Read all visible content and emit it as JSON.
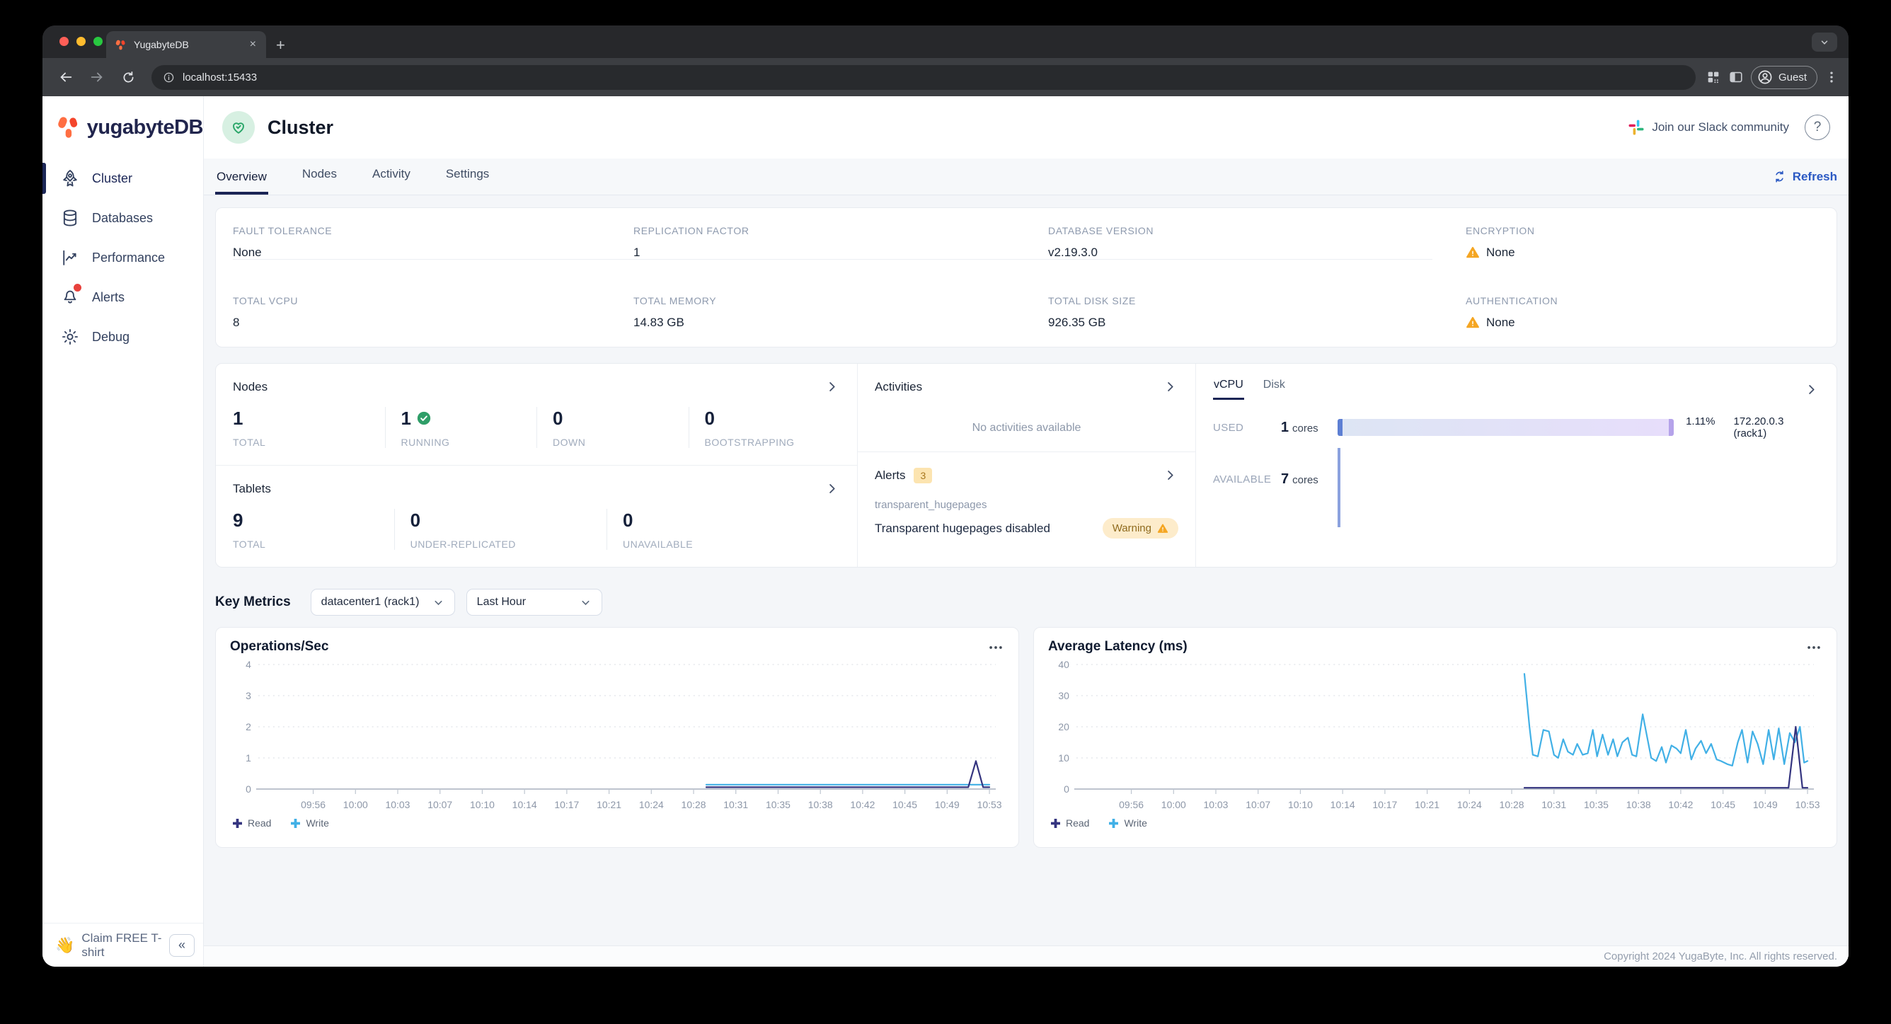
{
  "browser": {
    "tab_title": "YugabyteDB",
    "url": "localhost:15433",
    "profile_label": "Guest"
  },
  "glyphs": {
    "close": "×",
    "new_tab": "+",
    "collapse": "«",
    "help": "?",
    "wave_emoji": "👋"
  },
  "sidebar": {
    "logo_text": "yugabyteDB",
    "items": [
      {
        "label": "Cluster",
        "icon": "rocket",
        "active": true
      },
      {
        "label": "Databases",
        "icon": "database",
        "active": false
      },
      {
        "label": "Performance",
        "icon": "line-chart",
        "active": false
      },
      {
        "label": "Alerts",
        "icon": "bell-with-dot",
        "active": false
      },
      {
        "label": "Debug",
        "icon": "gear",
        "active": false
      }
    ],
    "claim_text": "Claim FREE T-shirt"
  },
  "header": {
    "title": "Cluster",
    "slack_link": "Join our Slack community"
  },
  "tabs": {
    "items": [
      "Overview",
      "Nodes",
      "Activity",
      "Settings"
    ],
    "active": "Overview",
    "refresh_label": "Refresh"
  },
  "overview_card": {
    "fields": [
      {
        "label": "FAULT TOLERANCE",
        "value": "None",
        "warning": false
      },
      {
        "label": "REPLICATION FACTOR",
        "value": "1",
        "warning": false
      },
      {
        "label": "DATABASE VERSION",
        "value": "v2.19.3.0",
        "warning": false
      },
      {
        "label": "ENCRYPTION",
        "value": "None",
        "warning": true
      },
      {
        "label": "TOTAL VCPU",
        "value": "8",
        "warning": false
      },
      {
        "label": "TOTAL MEMORY",
        "value": "14.83 GB",
        "warning": false
      },
      {
        "label": "TOTAL DISK SIZE",
        "value": "926.35 GB",
        "warning": false
      },
      {
        "label": "AUTHENTICATION",
        "value": "None",
        "warning": true
      }
    ]
  },
  "nodes_panel": {
    "title": "Nodes",
    "stats": [
      {
        "value": "1",
        "label": "TOTAL",
        "check": false
      },
      {
        "value": "1",
        "label": "RUNNING",
        "check": true
      },
      {
        "value": "0",
        "label": "DOWN",
        "check": false
      },
      {
        "value": "0",
        "label": "BOOTSTRAPPING",
        "check": false
      }
    ]
  },
  "tablets_panel": {
    "title": "Tablets",
    "stats": [
      {
        "value": "9",
        "label": "TOTAL"
      },
      {
        "value": "0",
        "label": "UNDER-REPLICATED"
      },
      {
        "value": "0",
        "label": "UNAVAILABLE"
      }
    ]
  },
  "activities_panel": {
    "title": "Activities",
    "empty_text": "No activities available"
  },
  "alerts_panel": {
    "title": "Alerts",
    "count": "3",
    "alert_name": "transparent_hugepages",
    "alert_text": "Transparent hugepages disabled",
    "badge_label": "Warning"
  },
  "usage_panel": {
    "tabs": [
      "vCPU",
      "Disk"
    ],
    "active_tab": "vCPU",
    "used_label": "USED",
    "used_value": "1",
    "used_unit": "cores",
    "used_percent": "1.11%",
    "used_node": "172.20.0.3 (rack1)",
    "available_label": "AVAILABLE",
    "available_value": "7",
    "available_unit": "cores"
  },
  "key_metrics": {
    "title": "Key Metrics",
    "region_select": "datacenter1 (rack1)",
    "time_select": "Last Hour"
  },
  "chart_data": [
    {
      "type": "line",
      "title": "Operations/Sec",
      "ylim": [
        0,
        4
      ],
      "yticks": [
        0,
        1,
        2,
        3,
        4
      ],
      "xticks": [
        "09:56",
        "10:00",
        "10:03",
        "10:07",
        "10:10",
        "10:14",
        "10:17",
        "10:21",
        "10:24",
        "10:28",
        "10:31",
        "10:35",
        "10:38",
        "10:42",
        "10:45",
        "10:49",
        "10:53"
      ],
      "x_unit": "tick-index",
      "legend_position": "bottom-left",
      "grid": "dotted-horizontal",
      "series": [
        {
          "name": "Read",
          "color": "#34347f",
          "z": 2,
          "points": [
            [
              9.3,
              0.06
            ],
            [
              12,
              0.06
            ],
            [
              14,
              0.06
            ],
            [
              15.5,
              0.06
            ],
            [
              15.68,
              0.9
            ],
            [
              15.85,
              0.06
            ],
            [
              16,
              0.06
            ]
          ]
        },
        {
          "name": "Write",
          "color": "#41b0e6",
          "z": 1,
          "points": [
            [
              9.3,
              0.14
            ],
            [
              12,
              0.14
            ],
            [
              14,
              0.14
            ],
            [
              16,
              0.14
            ]
          ]
        }
      ]
    },
    {
      "type": "line",
      "title": "Average Latency (ms)",
      "ylim": [
        0,
        40
      ],
      "yticks": [
        0,
        10,
        20,
        30,
        40
      ],
      "xticks": [
        "09:56",
        "10:00",
        "10:03",
        "10:07",
        "10:10",
        "10:14",
        "10:17",
        "10:21",
        "10:24",
        "10:28",
        "10:31",
        "10:35",
        "10:38",
        "10:42",
        "10:45",
        "10:49",
        "10:53"
      ],
      "x_unit": "tick-index",
      "legend_position": "bottom-left",
      "grid": "dotted-horizontal",
      "series": [
        {
          "name": "Read",
          "color": "#34347f",
          "z": 2,
          "points": [
            [
              9.3,
              0.4
            ],
            [
              12,
              0.4
            ],
            [
              14,
              0.4
            ],
            [
              15.4,
              0.4
            ],
            [
              15.55,
              0.4
            ],
            [
              15.72,
              20
            ],
            [
              15.88,
              0.4
            ],
            [
              16,
              0.4
            ]
          ]
        },
        {
          "name": "Write",
          "color": "#41b0e6",
          "z": 1,
          "points": [
            [
              9.3,
              37
            ],
            [
              9.42,
              20
            ],
            [
              9.5,
              11
            ],
            [
              9.62,
              10.5
            ],
            [
              9.75,
              19
            ],
            [
              9.88,
              18.5
            ],
            [
              10.0,
              11
            ],
            [
              10.1,
              10
            ],
            [
              10.22,
              16
            ],
            [
              10.33,
              12
            ],
            [
              10.45,
              11
            ],
            [
              10.55,
              14.5
            ],
            [
              10.68,
              11
            ],
            [
              10.8,
              11.5
            ],
            [
              10.92,
              19
            ],
            [
              11.02,
              10.5
            ],
            [
              11.15,
              17.5
            ],
            [
              11.28,
              11
            ],
            [
              11.4,
              16
            ],
            [
              11.5,
              10.5
            ],
            [
              11.62,
              15
            ],
            [
              11.75,
              16.5
            ],
            [
              11.85,
              11
            ],
            [
              11.95,
              10.5
            ],
            [
              12.1,
              24
            ],
            [
              12.2,
              17
            ],
            [
              12.3,
              10
            ],
            [
              12.42,
              9
            ],
            [
              12.55,
              13.5
            ],
            [
              12.65,
              8.5
            ],
            [
              12.78,
              14
            ],
            [
              12.9,
              13
            ],
            [
              13.0,
              11.5
            ],
            [
              13.12,
              19
            ],
            [
              13.25,
              9.5
            ],
            [
              13.35,
              13
            ],
            [
              13.48,
              15.5
            ],
            [
              13.6,
              11.5
            ],
            [
              13.72,
              14.5
            ],
            [
              13.85,
              9.5
            ],
            [
              13.95,
              9
            ],
            [
              14.1,
              8
            ],
            [
              14.22,
              7.5
            ],
            [
              14.35,
              15
            ],
            [
              14.45,
              19
            ],
            [
              14.58,
              8.5
            ],
            [
              14.7,
              18.5
            ],
            [
              14.82,
              14.5
            ],
            [
              14.95,
              8
            ],
            [
              15.08,
              19
            ],
            [
              15.2,
              9.5
            ],
            [
              15.32,
              19.5
            ],
            [
              15.45,
              8
            ],
            [
              15.58,
              18
            ],
            [
              15.7,
              15
            ],
            [
              15.82,
              20
            ],
            [
              15.92,
              8.5
            ],
            [
              16.0,
              9
            ]
          ]
        }
      ]
    }
  ],
  "footer": {
    "copyright": "Copyright 2024 YugaByte, Inc. All rights reserved."
  },
  "colors": {
    "accent_blue": "#2b59c3",
    "brand_navy": "#1c2757",
    "brand_orange": "#ff4a2e",
    "success_green": "#2f9e68",
    "warning_amber": "#f5a623",
    "read_line": "#34347f",
    "write_line": "#41b0e6"
  }
}
